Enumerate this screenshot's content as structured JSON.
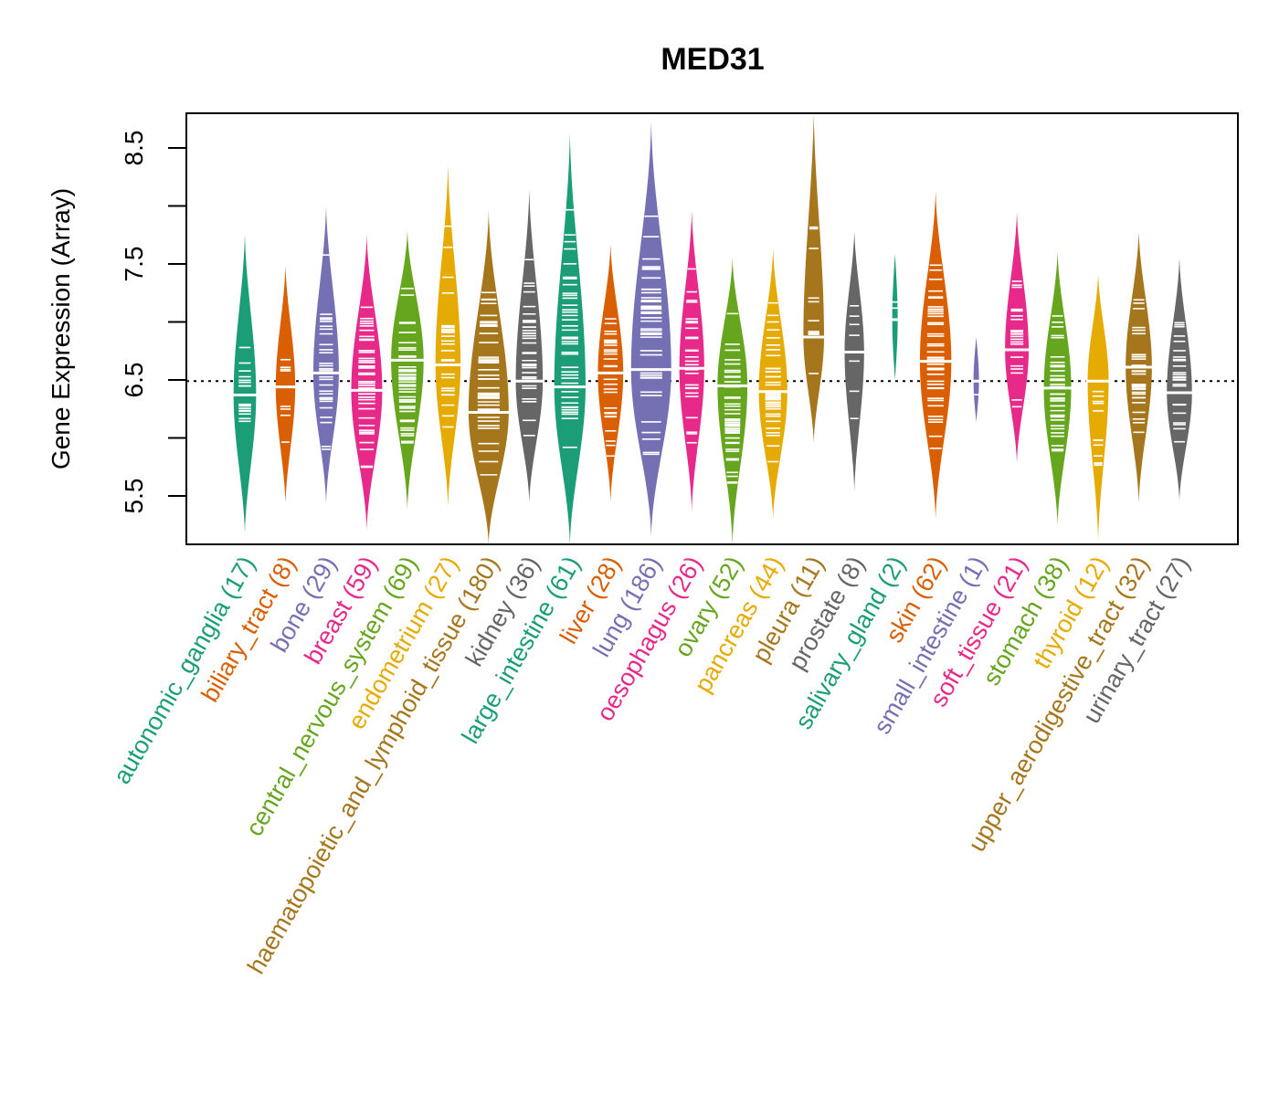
{
  "chart_data": {
    "type": "violin",
    "title": "MED31",
    "xlabel": "",
    "ylabel": "Gene Expression (Array)",
    "ylim": [
      5.08,
      8.8
    ],
    "yticks": [
      5.5,
      6.5,
      7.5,
      8.5
    ],
    "yticks_minor": [
      6.0,
      7.0,
      8.0
    ],
    "reference_line": 6.49,
    "grid": false,
    "legend": "none",
    "categories": [
      {
        "name": "autonomic_ganglia",
        "n": 17,
        "label": "autonomic_ganglia (17)",
        "color": "#1B9E77",
        "median": 6.37,
        "min": 5.18,
        "max": 7.75
      },
      {
        "name": "biliary_tract",
        "n": 8,
        "label": "biliary_tract (8)",
        "color": "#D95F02",
        "median": 6.44,
        "min": 5.44,
        "max": 7.48
      },
      {
        "name": "bone",
        "n": 29,
        "label": "bone (29)",
        "color": "#7570B3",
        "median": 6.56,
        "min": 5.44,
        "max": 8.0
      },
      {
        "name": "breast",
        "n": 59,
        "label": "breast (59)",
        "color": "#E7298A",
        "median": 6.41,
        "min": 5.21,
        "max": 7.75
      },
      {
        "name": "central_nervous_system",
        "n": 69,
        "label": "central_nervous_system (69)",
        "color": "#66A61E",
        "median": 6.67,
        "min": 5.38,
        "max": 7.79
      },
      {
        "name": "endometrium",
        "n": 27,
        "label": "endometrium (27)",
        "color": "#E6AB02",
        "median": 6.63,
        "min": 5.41,
        "max": 8.36
      },
      {
        "name": "haematopoietic_and_lymphoid_tissue",
        "n": 180,
        "label": "haematopoietic_and_lymphoid_tissue (180)",
        "color": "#A6761D",
        "median": 6.22,
        "min": 5.08,
        "max": 7.96
      },
      {
        "name": "kidney",
        "n": 36,
        "label": "kidney (36)",
        "color": "#666666",
        "median": 6.49,
        "min": 5.45,
        "max": 8.14
      },
      {
        "name": "large_intestine",
        "n": 61,
        "label": "large_intestine (61)",
        "color": "#1B9E77",
        "median": 6.44,
        "min": 5.08,
        "max": 8.63
      },
      {
        "name": "liver",
        "n": 28,
        "label": "liver (28)",
        "color": "#D95F02",
        "median": 6.56,
        "min": 5.45,
        "max": 7.67
      },
      {
        "name": "lung",
        "n": 186,
        "label": "lung (186)",
        "color": "#7570B3",
        "median": 6.59,
        "min": 5.15,
        "max": 8.73
      },
      {
        "name": "oesophagus",
        "n": 26,
        "label": "oesophagus (26)",
        "color": "#E7298A",
        "median": 6.6,
        "min": 5.37,
        "max": 7.96
      },
      {
        "name": "ovary",
        "n": 52,
        "label": "ovary (52)",
        "color": "#66A61E",
        "median": 6.45,
        "min": 5.08,
        "max": 7.55
      },
      {
        "name": "pancreas",
        "n": 44,
        "label": "pancreas (44)",
        "color": "#E6AB02",
        "median": 6.4,
        "min": 5.3,
        "max": 7.64
      },
      {
        "name": "pleura",
        "n": 11,
        "label": "pleura (11)",
        "color": "#A6761D",
        "median": 6.87,
        "min": 5.96,
        "max": 8.8
      },
      {
        "name": "prostate",
        "n": 8,
        "label": "prostate (8)",
        "color": "#666666",
        "median": 6.74,
        "min": 5.54,
        "max": 7.78
      },
      {
        "name": "salivary_gland",
        "n": 2,
        "label": "salivary_gland (2)",
        "color": "#1B9E77",
        "median": 7.02,
        "min": 6.5,
        "max": 7.59
      },
      {
        "name": "skin",
        "n": 62,
        "label": "skin (62)",
        "color": "#D95F02",
        "median": 6.66,
        "min": 5.3,
        "max": 8.13
      },
      {
        "name": "small_intestine",
        "n": 1,
        "label": "small_intestine (1)",
        "color": "#7570B3",
        "median": 6.49,
        "min": 6.14,
        "max": 6.87
      },
      {
        "name": "soft_tissue",
        "n": 21,
        "label": "soft_tissue (21)",
        "color": "#E7298A",
        "median": 6.76,
        "min": 5.79,
        "max": 7.95
      },
      {
        "name": "stomach",
        "n": 38,
        "label": "stomach (38)",
        "color": "#66A61E",
        "median": 6.43,
        "min": 5.25,
        "max": 7.61
      },
      {
        "name": "thyroid",
        "n": 12,
        "label": "thyroid (12)",
        "color": "#E6AB02",
        "median": 6.49,
        "min": 5.12,
        "max": 7.41
      },
      {
        "name": "upper_aerodigestive_tract",
        "n": 32,
        "label": "upper_aerodigestive_tract (32)",
        "color": "#A6761D",
        "median": 6.61,
        "min": 5.44,
        "max": 7.78
      },
      {
        "name": "urinary_tract",
        "n": 27,
        "label": "urinary_tract (27)",
        "color": "#666666",
        "median": 6.39,
        "min": 5.46,
        "max": 7.55
      }
    ]
  }
}
